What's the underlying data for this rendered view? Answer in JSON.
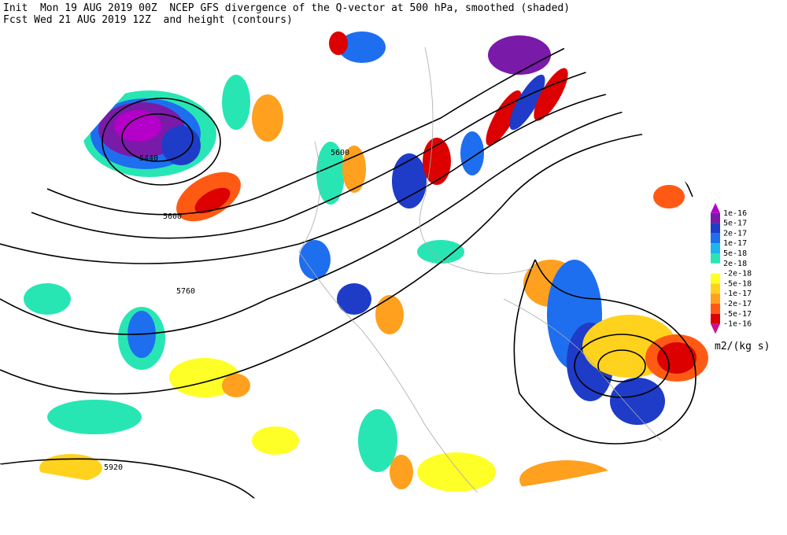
{
  "header": {
    "line1": "Init  Mon 19 AUG 2019 00Z  NCEP GFS divergence of the Q-vector at 500 hPa, smoothed (shaded)",
    "line2": "Fcst Wed 21 AUG 2019 12Z  and height (contours)"
  },
  "contour_labels": [
    5440,
    5600,
    5600,
    5760,
    5920
  ],
  "colorbar": {
    "labels": [
      "1e-16",
      "5e-17",
      "2e-17",
      "1e-17",
      "5e-18",
      "2e-18",
      "-2e-18",
      "-5e-18",
      "-1e-17",
      "-2e-17",
      "-5e-17",
      "-1e-16"
    ],
    "colors": [
      "#b400c8",
      "#7a1aa8",
      "#1e3cc8",
      "#1e6ef0",
      "#1eb4f0",
      "#28e6b4",
      "#ffffff",
      "#ffff28",
      "#ffd21e",
      "#ffa01e",
      "#ff5a14",
      "#dc0000",
      "#c8148c"
    ],
    "unit": "m2/(kg s)"
  }
}
